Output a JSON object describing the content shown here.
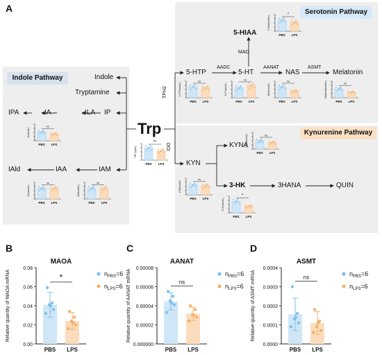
{
  "colors": {
    "pbs": "#7fbfea",
    "pbs_fill": "#cfe6f7",
    "lps": "#f6b06a",
    "lps_fill": "#fbdcbc",
    "bg_box": "#eeeeee",
    "serotonin_tag": "#d7e9f7",
    "kynurenine_tag": "#fbe0c4",
    "indole_tag": "#d7e2ee"
  },
  "panel_a": {
    "letter": "A",
    "pathways": {
      "indole": "Indole Pathway",
      "serotonin": "Serotonin Pathway",
      "kynurenine": "Kynurenine Pathway"
    },
    "nodes": {
      "trp": "Trp",
      "indole": "Indole",
      "tryptamine": "Tryptamine",
      "ipa": "IPA",
      "ia": "IA",
      "ila": "ILA",
      "ip": "IP",
      "iald": "IAld",
      "iaa": "IAA",
      "iam": "IAM",
      "htp": "5-HTP",
      "ht": "5-HT",
      "nas": "NAS",
      "melatonin": "Melatonin",
      "hiaa": "5-HIAA",
      "kyn": "KYN",
      "kyna": "KYNA",
      "hk": "3-HK",
      "hana": "3HANA",
      "quin": "QUIN"
    },
    "enzymes": {
      "tph2": "TPH2",
      "aadc": "AADC",
      "aanat": "AANAT",
      "asmt": "ASMT",
      "mao": "MAO",
      "ido": "IDO"
    }
  },
  "chart_data": [
    {
      "id": "trp",
      "type": "bar",
      "categories": [
        "PBS",
        "LPS"
      ],
      "values": [
        6.0,
        4.6
      ],
      "ylabel": "TRP (ng/mL)",
      "sig": "**"
    },
    {
      "id": "ia",
      "type": "bar",
      "categories": [
        "PBS",
        "LPS"
      ],
      "values": [
        8.0,
        6.2
      ],
      "ylabel": "IA(nmol/L)",
      "sig": "ns"
    },
    {
      "id": "iaa",
      "type": "bar",
      "categories": [
        "PBS",
        "LPS"
      ],
      "values": [
        1.3,
        1.3
      ],
      "ylabel": "IAA(nmol/L)",
      "sig": "ns"
    },
    {
      "id": "iam",
      "type": "bar",
      "categories": [
        "PBS",
        "LPS"
      ],
      "values": [
        1.3,
        1.3
      ],
      "ylabel": "IAM(nmol/L)",
      "sig": "ns"
    },
    {
      "id": "htp",
      "type": "bar",
      "categories": [
        "PBS",
        "LPS"
      ],
      "values": [
        1.0,
        0.9
      ],
      "ylabel": "5-HTP(nmol/L)",
      "sig": "ns"
    },
    {
      "id": "ht",
      "type": "bar",
      "categories": [
        "PBS",
        "LPS"
      ],
      "values": [
        1.2,
        1.5
      ],
      "ylabel": "5-HT(nmol/L)",
      "sig": "ns"
    },
    {
      "id": "nas",
      "type": "bar",
      "categories": [
        "PBS",
        "LPS"
      ],
      "values": [
        1.0,
        0.6
      ],
      "ylabel": "NAS(nmol/L)",
      "sig": "ns"
    },
    {
      "id": "melatonin",
      "type": "bar",
      "categories": [
        "PBS",
        "LPS"
      ],
      "values": [
        0.8,
        0.5
      ],
      "ylabel": "Melatonin(nmol/L)",
      "sig": "ns"
    },
    {
      "id": "hiaa",
      "type": "bar",
      "categories": [
        "PBS",
        "LPS"
      ],
      "values": [
        1.0,
        0.8
      ],
      "ylabel": "5-HIAA(nmol/L)",
      "sig": "*"
    },
    {
      "id": "kyn",
      "type": "bar",
      "categories": [
        "PBS",
        "LPS"
      ],
      "values": [
        1.2,
        1.1
      ],
      "ylabel": "KYN(nmol/L)",
      "sig": "ns"
    },
    {
      "id": "kyna",
      "type": "bar",
      "categories": [
        "PBS",
        "LPS"
      ],
      "values": [
        0.5,
        0.4
      ],
      "ylabel": "KYNA(nmol/L)",
      "sig": "ns"
    },
    {
      "id": "hk",
      "type": "bar",
      "categories": [
        "PBS",
        "LPS"
      ],
      "values": [
        1.4,
        0.8
      ],
      "ylabel": "3-HK(nmol/L)",
      "sig": "*"
    },
    {
      "id": "maoa",
      "panel": "B",
      "type": "bar",
      "title": "MAOA",
      "categories": [
        "PBS",
        "LPS"
      ],
      "values": [
        0.041,
        0.024
      ],
      "errors": [
        0.013,
        0.009
      ],
      "ylabel": "Relative quantity of MAOA mRNA",
      "ylim": [
        0,
        0.08
      ],
      "yticks": [
        "0.00",
        "0.02",
        "0.04",
        "0.06",
        "0.08"
      ],
      "sig": "*",
      "points": {
        "PBS": [
          0.059,
          0.043,
          0.041,
          0.036,
          0.032,
          0.04
        ],
        "LPS": [
          0.034,
          0.028,
          0.024,
          0.02,
          0.016,
          0.022
        ]
      },
      "legend": [
        {
          "label": "n",
          "sub": "PBS",
          "tail": "=6"
        },
        {
          "label": "n",
          "sub": "LPS",
          "tail": "=6"
        }
      ]
    },
    {
      "id": "aanat",
      "panel": "C",
      "type": "bar",
      "title": "AANAT",
      "categories": [
        "PBS",
        "LPS"
      ],
      "values": [
        4.45e-05,
        3.15e-05
      ],
      "errors": [
        9e-06,
        7e-06
      ],
      "ylabel": "Relative quantity of AANAT mRNA",
      "ylim": [
        0,
        8e-05
      ],
      "yticks": [
        "0.000000",
        "0.00002",
        "0.00004",
        "0.00006",
        "0.00008"
      ],
      "sig": "ns",
      "points": {
        "PBS": [
          5.5e-05,
          5e-05,
          4.5e-05,
          4.1e-05,
          3.3e-05,
          4.3e-05
        ],
        "LPS": [
          4e-05,
          3.6e-05,
          3.1e-05,
          2.8e-05,
          2.4e-05,
          3e-05
        ]
      },
      "legend": [
        {
          "label": "n",
          "sub": "PBS",
          "tail": "=6"
        },
        {
          "label": "n",
          "sub": "LPS",
          "tail": "=6"
        }
      ]
    },
    {
      "id": "asmt",
      "panel": "D",
      "type": "bar",
      "title": "ASMT",
      "categories": [
        "PBS",
        "LPS"
      ],
      "values": [
        0.000155,
        0.00011
      ],
      "errors": [
        8.5e-05,
        6e-05
      ],
      "ylabel": "Relative quantity of ASMT mRNA",
      "ylim": [
        0,
        0.0004
      ],
      "yticks": [
        "0.0000",
        "0.0001",
        "0.0002",
        "0.0003",
        "0.0004"
      ],
      "sig": "ns",
      "points": {
        "PBS": [
          0.0003,
          0.00016,
          0.00013,
          0.00011,
          9e-05,
          0.00014
        ],
        "LPS": [
          0.00018,
          0.00012,
          9e-05,
          7e-05,
          6e-05,
          0.00011
        ]
      },
      "legend": [
        {
          "label": "n",
          "sub": "PBS",
          "tail": "=6"
        },
        {
          "label": "n",
          "sub": "LPS",
          "tail": "=6"
        }
      ]
    }
  ]
}
